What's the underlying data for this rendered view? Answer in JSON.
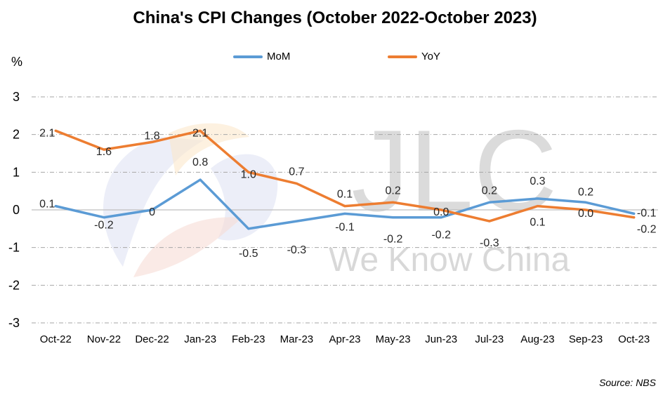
{
  "chart_data": {
    "type": "line",
    "title": "China's CPI Changes (October 2022-October 2023)",
    "ylabel": "%",
    "categories": [
      "Oct-22",
      "Nov-22",
      "Dec-22",
      "Jan-23",
      "Feb-23",
      "Mar-23",
      "Apr-23",
      "May-23",
      "Jun-23",
      "Jul-23",
      "Aug-23",
      "Sep-23",
      "Oct-23"
    ],
    "series": [
      {
        "name": "MoM",
        "color": "#5b9bd5",
        "values": [
          0.1,
          -0.2,
          0,
          0.8,
          -0.5,
          -0.3,
          -0.1,
          -0.2,
          -0.2,
          0.2,
          0.3,
          0.2,
          -0.1
        ],
        "labels": [
          "0.1",
          "-0.2",
          "0",
          "0.8",
          "-0.5",
          "-0.3",
          "-0.1",
          "-0.2",
          "-0.2",
          "0.2",
          "0.3",
          "0.2",
          "-0.1"
        ]
      },
      {
        "name": "YoY",
        "color": "#ed7d31",
        "values": [
          2.1,
          1.6,
          1.8,
          2.1,
          1.0,
          0.7,
          0.1,
          0.2,
          0.0,
          -0.3,
          0.1,
          0.0,
          -0.2
        ],
        "labels": [
          "2.1",
          "1.6",
          "1.8",
          "2.1",
          "1.0",
          "0.7",
          "0.1",
          "0.2",
          "0.0",
          "-0.3",
          "0.1",
          "0.0",
          "-0.2"
        ]
      }
    ],
    "ylim": [
      -3,
      3
    ],
    "yticks": [
      "3",
      "2",
      "1",
      "0",
      "-1",
      "-2",
      "-3"
    ],
    "grid": true,
    "legend_position": "top-center",
    "source": "Source: NBS"
  },
  "watermark": {
    "logo_text": "JLC",
    "slogan": "We Know China"
  }
}
